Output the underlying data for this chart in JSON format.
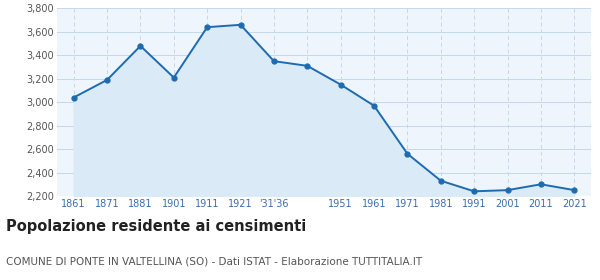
{
  "years": [
    1861,
    1871,
    1881,
    1901,
    1911,
    1921,
    1931,
    1936,
    1951,
    1961,
    1971,
    1981,
    1991,
    2001,
    2011,
    2021
  ],
  "population": [
    3040,
    3190,
    3480,
    3210,
    3640,
    3660,
    3350,
    3310,
    3150,
    2970,
    2560,
    2330,
    2240,
    2250,
    2300,
    2250
  ],
  "x_tick_labels": [
    "1861",
    "1871",
    "1881",
    "",
    "1901",
    "1911",
    "1921",
    "'31'36",
    "",
    "1951",
    "1961",
    "1971",
    "1981",
    "1991",
    "2001",
    "2011",
    "2021"
  ],
  "ylim": [
    2200,
    3800
  ],
  "yticks": [
    2200,
    2400,
    2600,
    2800,
    3000,
    3200,
    3400,
    3600,
    3800
  ],
  "ytick_labels": [
    "2,200",
    "2,400",
    "2,600",
    "2,800",
    "3,000",
    "3,200",
    "3,400",
    "3,600",
    "3,800"
  ],
  "line_color": "#1e6bb0",
  "fill_color": "#daeaf7",
  "marker_color": "#1e6bb0",
  "bg_color": "#eef5fc",
  "grid_color": "#c5d8ec",
  "title": "Popolazione residente ai censimenti",
  "title_fontsize": 10.5,
  "subtitle": "COMUNE DI PONTE IN VALTELLINA (SO) - Dati ISTAT - Elaborazione TUTTITALIA.IT",
  "subtitle_fontsize": 7.5
}
